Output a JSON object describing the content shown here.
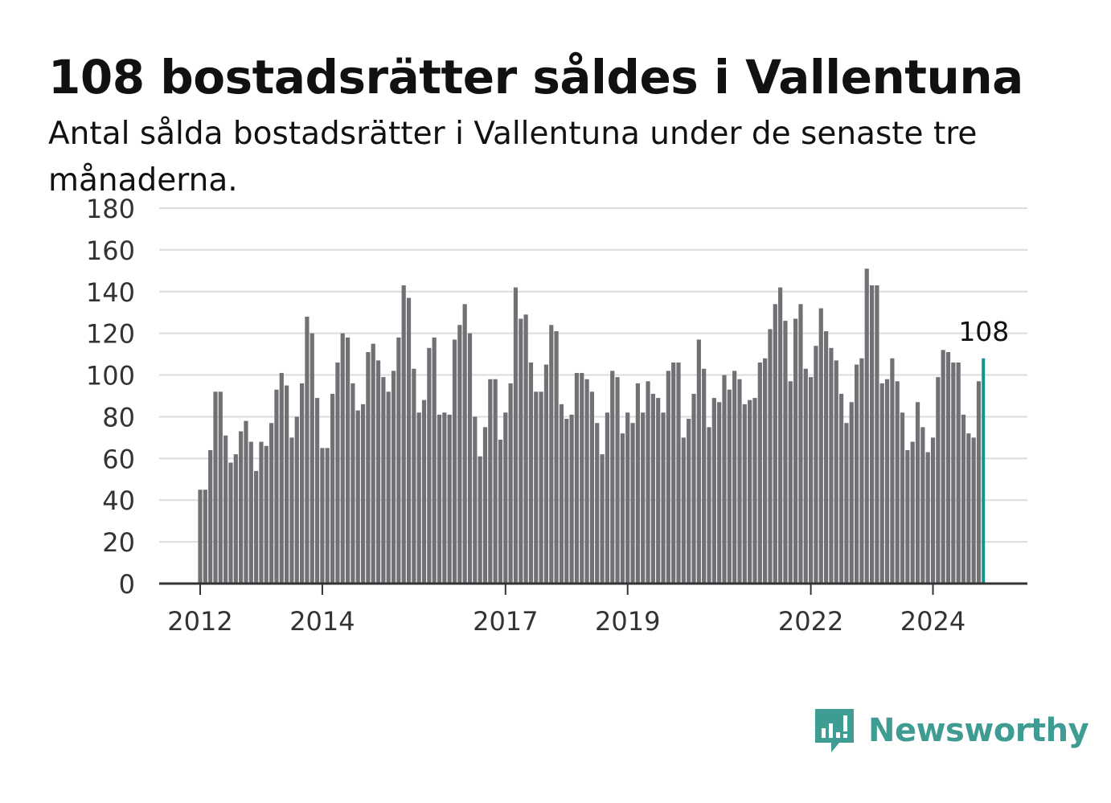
{
  "title": "108 bostadsrätter såldes i Vallentuna",
  "subtitle": "Antal sålda bostadsrätter i Vallentuna under de senaste tre månaderna.",
  "logo": {
    "text": "Newsworthy",
    "icon": "bar-chart-speech-bubble-icon",
    "color": "#3e9c93"
  },
  "chart_data": {
    "type": "bar",
    "title": "108 bostadsrätter såldes i Vallentuna",
    "subtitle": "Antal sålda bostadsrätter i Vallentuna under de senaste tre månaderna.",
    "xlabel": "",
    "ylabel": "",
    "ylim": [
      0,
      180
    ],
    "yticks": [
      0,
      20,
      40,
      60,
      80,
      100,
      120,
      140,
      160,
      180
    ],
    "xticks": [
      {
        "label": "2012",
        "index": 0
      },
      {
        "label": "2014",
        "index": 24
      },
      {
        "label": "2017",
        "index": 60
      },
      {
        "label": "2019",
        "index": 84
      },
      {
        "label": "2022",
        "index": 120
      },
      {
        "label": "2024",
        "index": 144
      }
    ],
    "grid": true,
    "bar_color": "#717075",
    "highlight_color": "#14958b",
    "highlight_label": "108",
    "values": [
      45,
      45,
      64,
      92,
      92,
      71,
      58,
      62,
      73,
      78,
      68,
      54,
      68,
      66,
      77,
      93,
      101,
      95,
      70,
      80,
      96,
      128,
      120,
      89,
      65,
      65,
      91,
      106,
      120,
      118,
      96,
      83,
      86,
      111,
      115,
      107,
      99,
      92,
      102,
      118,
      143,
      137,
      103,
      82,
      88,
      113,
      118,
      81,
      82,
      81,
      117,
      124,
      134,
      120,
      80,
      61,
      75,
      98,
      98,
      69,
      82,
      96,
      142,
      127,
      129,
      106,
      92,
      92,
      105,
      124,
      121,
      86,
      79,
      81,
      101,
      101,
      98,
      92,
      77,
      62,
      82,
      102,
      99,
      72,
      82,
      77,
      96,
      82,
      97,
      91,
      89,
      82,
      102,
      106,
      106,
      70,
      79,
      91,
      117,
      103,
      75,
      89,
      87,
      100,
      93,
      102,
      98,
      86,
      88,
      89,
      106,
      108,
      122,
      134,
      142,
      126,
      97,
      127,
      134,
      103,
      99,
      114,
      132,
      121,
      113,
      107,
      91,
      77,
      87,
      105,
      108,
      151,
      143,
      143,
      96,
      98,
      108,
      97,
      82,
      64,
      68,
      87,
      75,
      63,
      70,
      99,
      112,
      111,
      106,
      106,
      81,
      72,
      70,
      97,
      108
    ]
  }
}
